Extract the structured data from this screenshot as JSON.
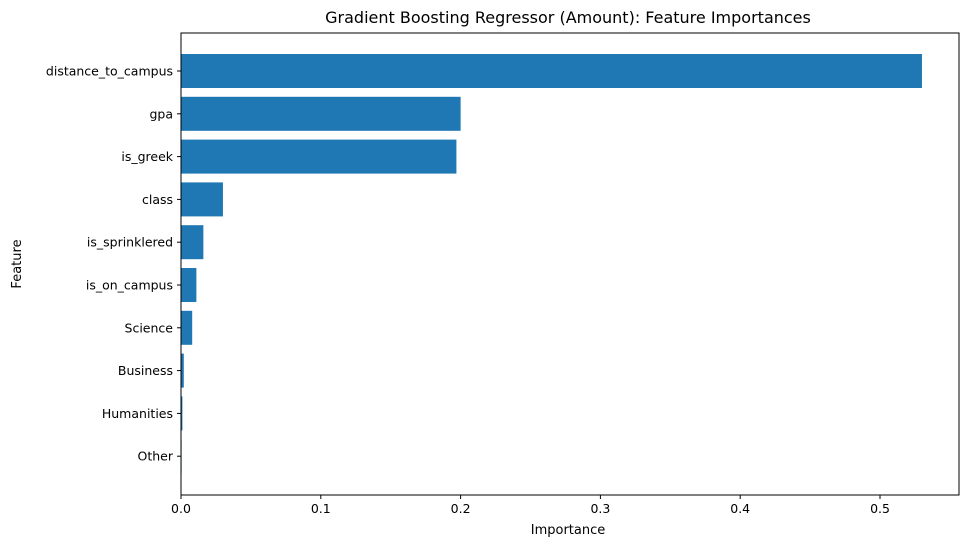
{
  "chart_data": {
    "type": "bar",
    "orientation": "horizontal",
    "title": "Gradient Boosting Regressor (Amount): Feature Importances",
    "xlabel": "Importance",
    "ylabel": "Feature",
    "categories": [
      "distance_to_campus",
      "gpa",
      "is_greek",
      "class",
      "is_sprinklered",
      "is_on_campus",
      "Science",
      "Business",
      "Humanities",
      "Other"
    ],
    "values": [
      0.53,
      0.2,
      0.197,
      0.03,
      0.016,
      0.011,
      0.008,
      0.002,
      0.001,
      0.0003
    ],
    "xlim": [
      0,
      0.5565
    ],
    "xticks": [
      0,
      0.1,
      0.2,
      0.3,
      0.4,
      0.5
    ],
    "xtick_labels": [
      "0.0",
      "0.1",
      "0.2",
      "0.3",
      "0.4",
      "0.5"
    ],
    "bar_color": "#1f77b4",
    "grid": false,
    "legend": "none"
  }
}
